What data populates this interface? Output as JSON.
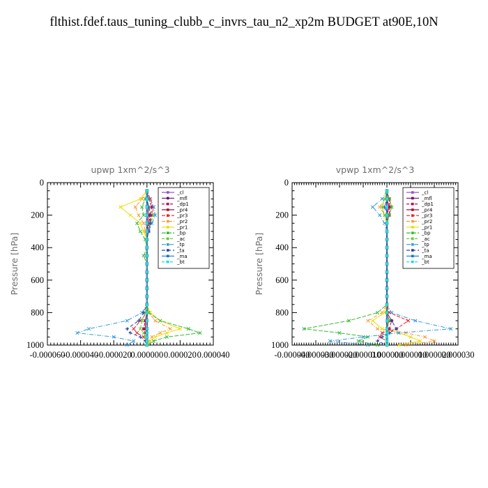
{
  "title": "flthist.fdef.taus_tuning_clubb_c_invrs_tau_n2_xp2m  BUDGET at90E,10N",
  "legend_labels": [
    "_cl",
    "_mfl",
    "_dp1",
    "_pr4",
    "_pr3",
    "_pr2",
    "_pr1",
    "_bp",
    "_ac",
    "_tp",
    "_ta",
    "_ma",
    "_bt"
  ],
  "legend_colors": [
    "#9955cc",
    "#66106a",
    "#cc0055",
    "#aa1030",
    "#ee2222",
    "#ff9933",
    "#eedd00",
    "#33bb33",
    "#66cc33",
    "#3399dd",
    "#2244aa",
    "#1177cc",
    "#22dddd"
  ],
  "chart_data": [
    {
      "type": "line",
      "title": "upwp   1xm^2/s^3",
      "ylabel": "Pressure [hPa]",
      "xlim": [
        -6e-05,
        4e-05
      ],
      "ylim": [
        1000,
        0
      ],
      "xticks": [
        -6e-05,
        -4e-05,
        -2e-05,
        0,
        2e-05,
        4e-05
      ],
      "xtick_labels": [
        "-0.000060",
        "-0.000040",
        "-0.000020",
        "0.000000",
        "0.000020",
        "0.000040"
      ],
      "yticks": [
        0,
        200,
        400,
        600,
        800,
        1000
      ],
      "ytick_labels": [
        "0",
        "200",
        "400",
        "600",
        "800",
        "1000"
      ],
      "legend": "inside-top-right",
      "y": [
        50,
        100,
        150,
        200,
        250,
        300,
        350,
        400,
        450,
        500,
        550,
        600,
        650,
        700,
        750,
        800,
        850,
        900,
        925,
        950,
        975,
        1000
      ],
      "series": [
        {
          "name": "_cl",
          "values": [
            0,
            0,
            0,
            0,
            0,
            0,
            0,
            0,
            0,
            0,
            0,
            0,
            0,
            0,
            0,
            0,
            0,
            0,
            0,
            0,
            0,
            0
          ]
        },
        {
          "name": "_mfl",
          "values": [
            0,
            0,
            0,
            0,
            0,
            0,
            0,
            0,
            0,
            0,
            0,
            0,
            0,
            0,
            0,
            0,
            0,
            0,
            0,
            0,
            0,
            0
          ]
        },
        {
          "name": "_dp1",
          "values": [
            0,
            1e-06,
            3e-06,
            2e-06,
            1e-06,
            1e-06,
            0,
            0,
            0,
            0,
            0,
            0,
            0,
            0,
            0,
            0,
            -1e-06,
            -2e-06,
            -1e-06,
            0,
            0,
            0
          ]
        },
        {
          "name": "_pr4",
          "values": [
            0,
            0,
            1e-06,
            1e-06,
            1e-06,
            0,
            0,
            0,
            0,
            0,
            0,
            0,
            0,
            0,
            0,
            0,
            -1e-06,
            -1e-06,
            0,
            0,
            0,
            0
          ]
        },
        {
          "name": "_pr3",
          "values": [
            0,
            2e-06,
            4e-06,
            3e-06,
            2e-06,
            1e-06,
            0,
            0,
            0,
            0,
            0,
            0,
            0,
            0,
            0,
            0,
            -4e-06,
            -8e-06,
            -6e-06,
            -2e-06,
            0,
            0
          ]
        },
        {
          "name": "_pr2",
          "values": [
            0,
            -3e-06,
            -7e-06,
            -5e-06,
            -2e-06,
            -1e-06,
            0,
            0,
            0,
            0,
            0,
            0,
            0,
            0,
            0,
            1e-06,
            5e-06,
            1.4e-05,
            8e-06,
            3e-06,
            1e-06,
            0
          ]
        },
        {
          "name": "_pr1",
          "values": [
            0,
            -4e-06,
            -1.6e-05,
            -1e-05,
            -4e-06,
            -2e-06,
            0,
            0,
            0,
            0,
            0,
            0,
            0,
            0,
            0,
            2e-06,
            8e-06,
            2e-05,
            1.2e-05,
            5e-06,
            2e-06,
            0
          ]
        },
        {
          "name": "_bp",
          "values": [
            0,
            -1e-06,
            -3e-06,
            -2e-06,
            -6e-06,
            -4e-06,
            -1e-06,
            0,
            -2e-06,
            0,
            0,
            0,
            0,
            0,
            0,
            1e-06,
            8e-06,
            2.5e-05,
            3.2e-05,
            1.2e-05,
            4e-06,
            0
          ]
        },
        {
          "name": "_ac",
          "values": [
            0,
            0,
            1e-06,
            4e-06,
            2e-06,
            1e-06,
            0,
            0,
            0,
            0,
            0,
            0,
            0,
            0,
            0,
            -1e-06,
            -3e-06,
            -4e-06,
            -2e-06,
            -1e-06,
            0,
            0
          ]
        },
        {
          "name": "_tp",
          "values": [
            0,
            1e-06,
            4e-06,
            5e-06,
            3e-06,
            1e-06,
            0,
            0,
            0,
            0,
            0,
            0,
            0,
            0,
            0,
            -3e-06,
            -1.2e-05,
            -3.5e-05,
            -4.2e-05,
            -2e-05,
            -8e-06,
            -1.2e-05
          ]
        },
        {
          "name": "_ta",
          "values": [
            0,
            0,
            1e-06,
            2e-06,
            2e-06,
            1e-06,
            0,
            0,
            0,
            0,
            0,
            0,
            0,
            0,
            0,
            -2e-06,
            -5e-06,
            -1.2e-05,
            -1e-05,
            -4e-06,
            -1e-06,
            0
          ]
        },
        {
          "name": "_ma",
          "values": [
            0,
            0,
            0,
            0,
            0,
            0,
            0,
            0,
            0,
            0,
            0,
            0,
            0,
            0,
            0,
            0,
            0,
            0,
            0,
            0,
            0,
            0
          ]
        },
        {
          "name": "_bt",
          "values": [
            0,
            0,
            0,
            0,
            0,
            0,
            0,
            0,
            0,
            0,
            0,
            0,
            0,
            0,
            0,
            0,
            0,
            0,
            0,
            0,
            0,
            0
          ]
        }
      ]
    },
    {
      "type": "line",
      "title": "vpwp   1xm^2/s^3",
      "ylabel": "Pressure [hPa]",
      "xlim": [
        -4e-05,
        3e-05
      ],
      "ylim": [
        1000,
        0
      ],
      "xticks": [
        -4e-05,
        -3e-05,
        -2e-05,
        -1e-05,
        0,
        1e-05,
        2e-05,
        3e-05
      ],
      "xtick_labels": [
        "-0.000040",
        "-0.000030",
        "-0.000020",
        "-0.000010",
        "0.000000",
        "0.000010",
        "0.000020",
        "0.000030"
      ],
      "yticks": [
        0,
        200,
        400,
        600,
        800,
        1000
      ],
      "ytick_labels": [
        "0",
        "200",
        "400",
        "600",
        "800",
        "1000"
      ],
      "legend": "inside-top-right",
      "y": [
        50,
        100,
        150,
        200,
        250,
        300,
        350,
        400,
        450,
        500,
        550,
        600,
        650,
        700,
        750,
        800,
        850,
        900,
        925,
        950,
        975,
        1000
      ],
      "series": [
        {
          "name": "_cl",
          "values": [
            0,
            0,
            0,
            0,
            0,
            0,
            0,
            0,
            0,
            0,
            0,
            0,
            0,
            0,
            0,
            0,
            0,
            0,
            0,
            0,
            0,
            0
          ]
        },
        {
          "name": "_mfl",
          "values": [
            0,
            0,
            0,
            0,
            0,
            0,
            0,
            0,
            0,
            0,
            0,
            0,
            0,
            0,
            0,
            0,
            0,
            0,
            0,
            0,
            0,
            0
          ]
        },
        {
          "name": "_dp1",
          "values": [
            0,
            1e-06,
            1e-06,
            1e-06,
            0,
            0,
            0,
            0,
            0,
            0,
            0,
            0,
            0,
            0,
            0,
            0,
            2e-06,
            1e-06,
            0,
            0,
            0,
            0
          ]
        },
        {
          "name": "_pr4",
          "values": [
            0,
            0,
            1e-06,
            0,
            0,
            0,
            0,
            0,
            0,
            0,
            0,
            0,
            0,
            0,
            0,
            0,
            1e-06,
            0,
            0,
            0,
            0,
            0
          ]
        },
        {
          "name": "_pr3",
          "values": [
            0,
            1e-06,
            2e-06,
            1e-06,
            0,
            0,
            0,
            0,
            0,
            0,
            0,
            0,
            0,
            0,
            0,
            1e-06,
            9e-06,
            4e-06,
            -2e-06,
            -3e-06,
            0,
            0
          ]
        },
        {
          "name": "_pr2",
          "values": [
            0,
            -1e-06,
            -3e-06,
            -1e-06,
            0,
            0,
            0,
            0,
            0,
            0,
            0,
            0,
            0,
            0,
            0,
            -2e-06,
            -8e-06,
            -4e-06,
            8e-06,
            1.6e-05,
            2e-05,
            8e-06
          ]
        },
        {
          "name": "_pr1",
          "values": [
            0,
            -1e-06,
            -2e-06,
            -1e-06,
            0,
            0,
            0,
            0,
            0,
            0,
            0,
            0,
            0,
            0,
            0,
            -1e-06,
            -6e-06,
            -2e-06,
            5e-06,
            1e-05,
            1.4e-05,
            5e-06
          ]
        },
        {
          "name": "_bp",
          "values": [
            0,
            1e-06,
            2e-06,
            1e-06,
            0,
            0,
            0,
            0,
            0,
            0,
            0,
            0,
            0,
            0,
            0,
            -4e-06,
            -1.6e-05,
            -3.5e-05,
            -2e-05,
            -8e-06,
            -1.2e-05,
            -4e-06
          ]
        },
        {
          "name": "_ac",
          "values": [
            0,
            -1e-06,
            -2e-06,
            -1e-06,
            0,
            0,
            0,
            0,
            0,
            0,
            0,
            0,
            0,
            0,
            0,
            0,
            1e-06,
            0,
            0,
            0,
            0,
            0
          ]
        },
        {
          "name": "_tp",
          "values": [
            0,
            -2e-06,
            -6e-06,
            -3e-06,
            -1e-06,
            0,
            0,
            0,
            0,
            0,
            0,
            0,
            0,
            0,
            0,
            2e-06,
            1.2e-05,
            2.7e-05,
            5e-06,
            -1e-05,
            -2.4e-05,
            -8e-06
          ]
        },
        {
          "name": "_ta",
          "values": [
            0,
            0,
            -1e-06,
            0,
            0,
            0,
            0,
            0,
            0,
            0,
            0,
            0,
            0,
            0,
            0,
            0,
            2e-06,
            4e-06,
            1e-06,
            -2e-06,
            -4e-06,
            0
          ]
        },
        {
          "name": "_ma",
          "values": [
            0,
            0,
            0,
            0,
            0,
            0,
            0,
            0,
            0,
            0,
            0,
            0,
            0,
            0,
            0,
            0,
            0,
            0,
            0,
            0,
            0,
            0
          ]
        },
        {
          "name": "_bt",
          "values": [
            0,
            0,
            0,
            0,
            0,
            0,
            0,
            0,
            0,
            0,
            0,
            0,
            0,
            0,
            0,
            0,
            0,
            0,
            0,
            0,
            0,
            0
          ]
        }
      ]
    }
  ]
}
